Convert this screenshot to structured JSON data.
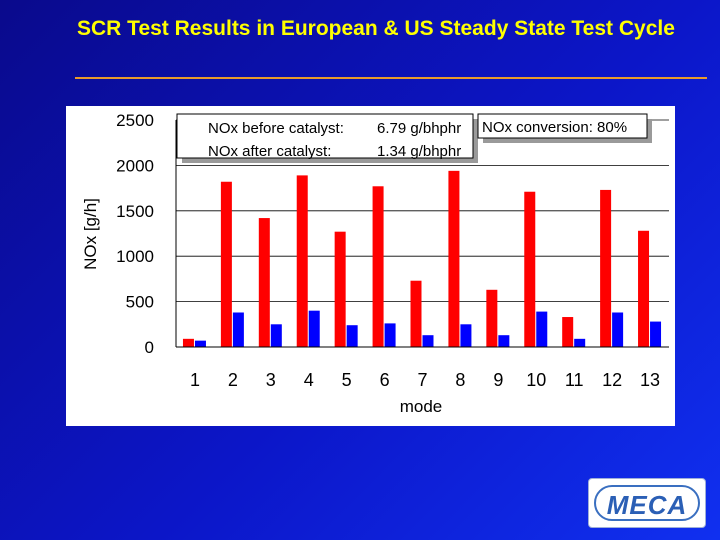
{
  "slide": {
    "title": "SCR Test Results in European & US Steady State Test Cycle"
  },
  "logo": {
    "text": "MECA"
  },
  "chart_data": {
    "type": "bar",
    "categories": [
      "1",
      "2",
      "3",
      "4",
      "5",
      "6",
      "7",
      "8",
      "9",
      "10",
      "11",
      "12",
      "13"
    ],
    "series": [
      {
        "values": [
          90,
          1820,
          1420,
          1890,
          1270,
          1770,
          730,
          1940,
          630,
          1710,
          330,
          1730,
          1280
        ],
        "color": "#ff0000"
      },
      {
        "values": [
          70,
          380,
          250,
          400,
          240,
          260,
          130,
          250,
          130,
          390,
          90,
          380,
          280
        ],
        "color": "#0000ff"
      }
    ],
    "xlabel": "mode",
    "ylabel": "NOx [g/h]",
    "ylim": [
      0,
      2500
    ],
    "yticks": [
      0,
      500,
      1000,
      1500,
      2000,
      2500
    ],
    "grid": true,
    "annotations": {
      "before_label": "NOx before catalyst:",
      "before_value": "6.79 g/bhphr",
      "after_label": "NOx after catalyst:",
      "after_value": "1.34 g/bhphr",
      "conversion": "NOx conversion:  80%"
    }
  }
}
